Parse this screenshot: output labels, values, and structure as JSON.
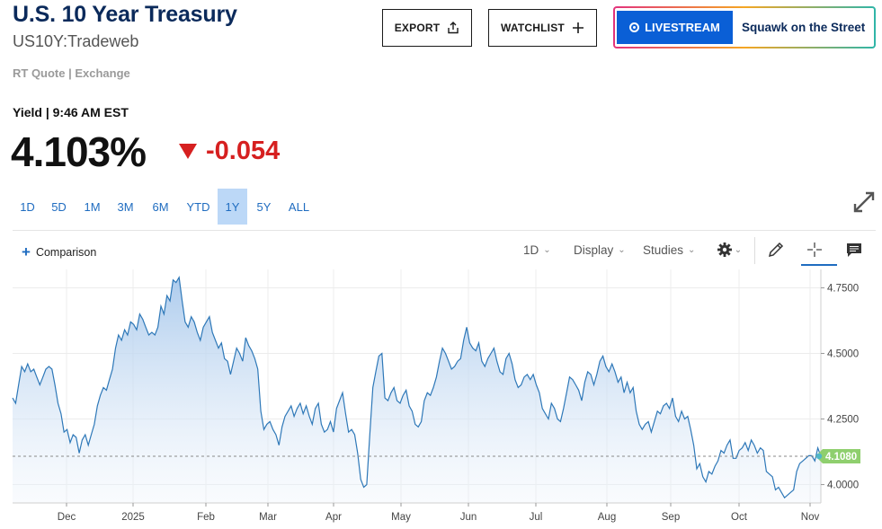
{
  "header": {
    "title": "U.S. 10 Year Treasury",
    "symbol": "US10Y:Tradeweb",
    "source": "RT Quote | Exchange",
    "export_label": "EXPORT",
    "watchlist_label": "WATCHLIST",
    "live_label": "LIVESTREAM",
    "live_show": "Squawk on the Street"
  },
  "quote": {
    "label": "Yield | 9:46 AM EST",
    "value": "4.103%",
    "change": "-0.054",
    "direction": "down",
    "down_color": "#d62020"
  },
  "ranges": {
    "items": [
      "1D",
      "5D",
      "1M",
      "3M",
      "6M",
      "YTD",
      "1Y",
      "5Y",
      "ALL"
    ],
    "active": "1Y"
  },
  "toolbar": {
    "comparison_label": "Comparison",
    "interval_label": "1D",
    "display_label": "Display",
    "studies_label": "Studies",
    "icons": [
      "gear-icon",
      "pencil-icon",
      "crosshair-icon",
      "comment-icon"
    ]
  },
  "chart_data": {
    "type": "area",
    "y_ticks": [
      "4.7500",
      "4.5000",
      "4.2500",
      "4.0000"
    ],
    "x_labels": [
      "Dec",
      "2025",
      "Feb",
      "Mar",
      "Apr",
      "May",
      "Jun",
      "Jul",
      "Aug",
      "Sep",
      "Oct",
      "Nov"
    ],
    "ylim": [
      3.93,
      4.82
    ],
    "last_value": 4.108,
    "last_label": "4.1080",
    "grid": true,
    "line_color": "#2e78b8",
    "fill_color": "#a9c9ec",
    "last_badge_color": "#8fcf6e",
    "series": [
      4.33,
      4.31,
      4.38,
      4.45,
      4.43,
      4.46,
      4.43,
      4.44,
      4.41,
      4.38,
      4.41,
      4.44,
      4.45,
      4.44,
      4.38,
      4.31,
      4.27,
      4.2,
      4.21,
      4.16,
      4.19,
      4.18,
      4.12,
      4.17,
      4.19,
      4.15,
      4.19,
      4.23,
      4.3,
      4.34,
      4.37,
      4.36,
      4.4,
      4.44,
      4.52,
      4.57,
      4.55,
      4.59,
      4.57,
      4.62,
      4.61,
      4.59,
      4.65,
      4.63,
      4.6,
      4.57,
      4.58,
      4.57,
      4.6,
      4.68,
      4.65,
      4.72,
      4.7,
      4.78,
      4.77,
      4.79,
      4.7,
      4.62,
      4.6,
      4.64,
      4.62,
      4.58,
      4.55,
      4.6,
      4.62,
      4.64,
      4.58,
      4.55,
      4.52,
      4.54,
      4.48,
      4.47,
      4.42,
      4.47,
      4.52,
      4.5,
      4.47,
      4.56,
      4.53,
      4.51,
      4.48,
      4.44,
      4.28,
      4.21,
      4.23,
      4.24,
      4.21,
      4.19,
      4.15,
      4.22,
      4.26,
      4.28,
      4.3,
      4.26,
      4.29,
      4.31,
      4.27,
      4.3,
      4.26,
      4.23,
      4.29,
      4.31,
      4.23,
      4.2,
      4.21,
      4.24,
      4.2,
      4.29,
      4.32,
      4.35,
      4.27,
      4.2,
      4.21,
      4.19,
      4.12,
      4.02,
      3.99,
      4.0,
      4.19,
      4.37,
      4.43,
      4.49,
      4.5,
      4.33,
      4.32,
      4.35,
      4.37,
      4.32,
      4.31,
      4.34,
      4.36,
      4.3,
      4.28,
      4.23,
      4.22,
      4.24,
      4.32,
      4.35,
      4.34,
      4.37,
      4.41,
      4.47,
      4.52,
      4.5,
      4.47,
      4.44,
      4.45,
      4.47,
      4.48,
      4.55,
      4.6,
      4.54,
      4.52,
      4.51,
      4.54,
      4.47,
      4.45,
      4.48,
      4.5,
      4.52,
      4.47,
      4.43,
      4.42,
      4.48,
      4.5,
      4.46,
      4.4,
      4.37,
      4.38,
      4.41,
      4.42,
      4.4,
      4.42,
      4.38,
      4.35,
      4.29,
      4.27,
      4.25,
      4.31,
      4.29,
      4.25,
      4.24,
      4.29,
      4.35,
      4.41,
      4.4,
      4.38,
      4.36,
      4.32,
      4.39,
      4.43,
      4.42,
      4.38,
      4.42,
      4.47,
      4.49,
      4.45,
      4.43,
      4.46,
      4.43,
      4.39,
      4.41,
      4.35,
      4.39,
      4.35,
      4.37,
      4.28,
      4.23,
      4.21,
      4.23,
      4.24,
      4.2,
      4.24,
      4.28,
      4.27,
      4.3,
      4.31,
      4.29,
      4.33,
      4.26,
      4.24,
      4.28,
      4.25,
      4.26,
      4.21,
      4.15,
      4.06,
      4.08,
      4.03,
      4.01,
      4.05,
      4.04,
      4.07,
      4.09,
      4.13,
      4.12,
      4.15,
      4.17,
      4.1,
      4.1,
      4.13,
      4.14,
      4.16,
      4.13,
      4.17,
      4.15,
      4.12,
      4.14,
      4.13,
      4.05,
      4.04,
      4.03,
      3.98,
      3.99,
      3.97,
      3.95,
      3.96,
      3.97,
      3.98,
      4.05,
      4.08,
      4.09,
      4.1,
      4.11,
      4.11,
      4.09,
      4.14,
      4.108
    ]
  }
}
